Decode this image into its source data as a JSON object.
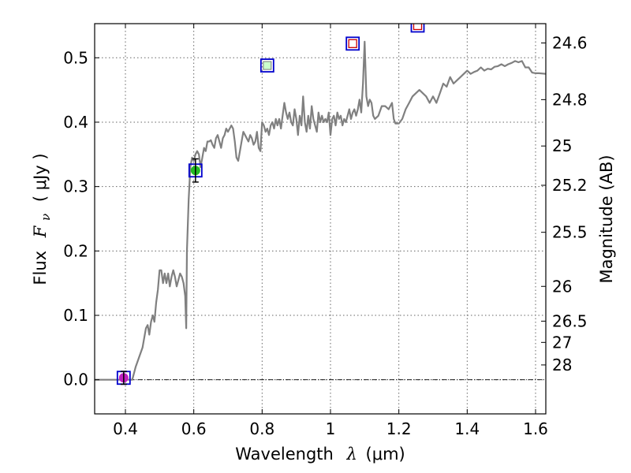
{
  "chart_data": {
    "type": "line",
    "xlabel_text": "Wavelength",
    "xlabel_symbol": "λ",
    "xlabel_units": "(μm)",
    "ylabel_text": "Flux",
    "ylabel_symbol": "F",
    "ylabel_sub": "ν",
    "ylabel_units": "( μJy )",
    "y2label": "Magnitude (AB)",
    "xlim": [
      0.31,
      1.63
    ],
    "ylim": [
      -0.053,
      0.553
    ],
    "xticks": [
      0.4,
      0.6,
      0.8,
      1.0,
      1.2,
      1.4,
      1.6
    ],
    "xtick_labels": [
      "0.4",
      "0.6",
      "0.8",
      "1",
      "1.2",
      "1.4",
      "1.6"
    ],
    "yticks": [
      0.0,
      0.1,
      0.2,
      0.3,
      0.4,
      0.5
    ],
    "ytick_labels": [
      "0.0",
      "0.1",
      "0.2",
      "0.3",
      "0.4",
      "0.5"
    ],
    "mag_ticks": [
      {
        "label": "24.6",
        "flux": 0.523
      },
      {
        "label": "24.8",
        "flux": 0.435
      },
      {
        "label": "25",
        "flux": 0.363
      },
      {
        "label": "25.2",
        "flux": 0.302
      },
      {
        "label": "25.5",
        "flux": 0.229
      },
      {
        "label": "26",
        "flux": 0.145
      },
      {
        "label": "26.5",
        "flux": 0.091
      },
      {
        "label": "27",
        "flux": 0.058
      },
      {
        "label": "28",
        "flux": 0.023
      }
    ],
    "grid": true,
    "series": [
      {
        "name": "model spectrum",
        "color": "#808080",
        "points": [
          [
            0.31,
            0.0
          ],
          [
            0.4,
            0.0
          ],
          [
            0.42,
            0.0
          ],
          [
            0.43,
            0.02
          ],
          [
            0.45,
            0.05
          ],
          [
            0.46,
            0.08
          ],
          [
            0.465,
            0.085
          ],
          [
            0.47,
            0.07
          ],
          [
            0.475,
            0.09
          ],
          [
            0.48,
            0.1
          ],
          [
            0.485,
            0.09
          ],
          [
            0.49,
            0.12
          ],
          [
            0.495,
            0.14
          ],
          [
            0.5,
            0.17
          ],
          [
            0.505,
            0.17
          ],
          [
            0.51,
            0.15
          ],
          [
            0.515,
            0.165
          ],
          [
            0.52,
            0.15
          ],
          [
            0.525,
            0.165
          ],
          [
            0.53,
            0.145
          ],
          [
            0.535,
            0.16
          ],
          [
            0.54,
            0.17
          ],
          [
            0.545,
            0.16
          ],
          [
            0.55,
            0.145
          ],
          [
            0.555,
            0.155
          ],
          [
            0.56,
            0.165
          ],
          [
            0.565,
            0.16
          ],
          [
            0.57,
            0.15
          ],
          [
            0.575,
            0.13
          ],
          [
            0.578,
            0.08
          ],
          [
            0.58,
            0.2
          ],
          [
            0.585,
            0.28
          ],
          [
            0.59,
            0.33
          ],
          [
            0.595,
            0.345
          ],
          [
            0.6,
            0.34
          ],
          [
            0.605,
            0.35
          ],
          [
            0.61,
            0.355
          ],
          [
            0.615,
            0.35
          ],
          [
            0.62,
            0.33
          ],
          [
            0.625,
            0.345
          ],
          [
            0.63,
            0.36
          ],
          [
            0.635,
            0.355
          ],
          [
            0.64,
            0.37
          ],
          [
            0.645,
            0.37
          ],
          [
            0.65,
            0.372
          ],
          [
            0.655,
            0.365
          ],
          [
            0.66,
            0.36
          ],
          [
            0.665,
            0.375
          ],
          [
            0.67,
            0.38
          ],
          [
            0.675,
            0.37
          ],
          [
            0.68,
            0.36
          ],
          [
            0.685,
            0.375
          ],
          [
            0.69,
            0.38
          ],
          [
            0.695,
            0.39
          ],
          [
            0.7,
            0.385
          ],
          [
            0.705,
            0.39
          ],
          [
            0.71,
            0.395
          ],
          [
            0.715,
            0.39
          ],
          [
            0.72,
            0.37
          ],
          [
            0.725,
            0.345
          ],
          [
            0.73,
            0.34
          ],
          [
            0.735,
            0.355
          ],
          [
            0.74,
            0.37
          ],
          [
            0.745,
            0.385
          ],
          [
            0.75,
            0.38
          ],
          [
            0.755,
            0.375
          ],
          [
            0.76,
            0.37
          ],
          [
            0.765,
            0.38
          ],
          [
            0.77,
            0.375
          ],
          [
            0.775,
            0.365
          ],
          [
            0.78,
            0.37
          ],
          [
            0.785,
            0.385
          ],
          [
            0.79,
            0.36
          ],
          [
            0.795,
            0.355
          ],
          [
            0.8,
            0.4
          ],
          [
            0.805,
            0.395
          ],
          [
            0.81,
            0.385
          ],
          [
            0.815,
            0.39
          ],
          [
            0.82,
            0.38
          ],
          [
            0.825,
            0.395
          ],
          [
            0.83,
            0.4
          ],
          [
            0.835,
            0.39
          ],
          [
            0.84,
            0.405
          ],
          [
            0.845,
            0.395
          ],
          [
            0.85,
            0.405
          ],
          [
            0.855,
            0.39
          ],
          [
            0.86,
            0.41
          ],
          [
            0.865,
            0.43
          ],
          [
            0.87,
            0.415
          ],
          [
            0.875,
            0.405
          ],
          [
            0.88,
            0.415
          ],
          [
            0.885,
            0.4
          ],
          [
            0.89,
            0.395
          ],
          [
            0.895,
            0.42
          ],
          [
            0.9,
            0.405
          ],
          [
            0.905,
            0.38
          ],
          [
            0.91,
            0.41
          ],
          [
            0.915,
            0.395
          ],
          [
            0.92,
            0.44
          ],
          [
            0.925,
            0.4
          ],
          [
            0.93,
            0.385
          ],
          [
            0.935,
            0.41
          ],
          [
            0.94,
            0.39
          ],
          [
            0.945,
            0.425
          ],
          [
            0.95,
            0.405
          ],
          [
            0.955,
            0.395
          ],
          [
            0.96,
            0.385
          ],
          [
            0.965,
            0.415
          ],
          [
            0.97,
            0.4
          ],
          [
            0.975,
            0.41
          ],
          [
            0.98,
            0.4
          ],
          [
            0.985,
            0.405
          ],
          [
            0.99,
            0.4
          ],
          [
            0.995,
            0.415
          ],
          [
            1.0,
            0.38
          ],
          [
            1.005,
            0.405
          ],
          [
            1.01,
            0.41
          ],
          [
            1.015,
            0.395
          ],
          [
            1.02,
            0.415
          ],
          [
            1.025,
            0.405
          ],
          [
            1.03,
            0.41
          ],
          [
            1.035,
            0.395
          ],
          [
            1.04,
            0.405
          ],
          [
            1.045,
            0.4
          ],
          [
            1.05,
            0.41
          ],
          [
            1.055,
            0.42
          ],
          [
            1.06,
            0.405
          ],
          [
            1.065,
            0.415
          ],
          [
            1.07,
            0.42
          ],
          [
            1.075,
            0.41
          ],
          [
            1.08,
            0.42
          ],
          [
            1.085,
            0.435
          ],
          [
            1.09,
            0.415
          ],
          [
            1.095,
            0.46
          ],
          [
            1.1,
            0.525
          ],
          [
            1.105,
            0.44
          ],
          [
            1.11,
            0.425
          ],
          [
            1.115,
            0.435
          ],
          [
            1.12,
            0.43
          ],
          [
            1.125,
            0.41
          ],
          [
            1.13,
            0.405
          ],
          [
            1.14,
            0.41
          ],
          [
            1.15,
            0.425
          ],
          [
            1.16,
            0.425
          ],
          [
            1.17,
            0.42
          ],
          [
            1.18,
            0.43
          ],
          [
            1.185,
            0.405
          ],
          [
            1.19,
            0.398
          ],
          [
            1.2,
            0.398
          ],
          [
            1.21,
            0.405
          ],
          [
            1.22,
            0.42
          ],
          [
            1.23,
            0.43
          ],
          [
            1.24,
            0.44
          ],
          [
            1.25,
            0.445
          ],
          [
            1.26,
            0.45
          ],
          [
            1.27,
            0.445
          ],
          [
            1.28,
            0.44
          ],
          [
            1.29,
            0.43
          ],
          [
            1.3,
            0.44
          ],
          [
            1.305,
            0.435
          ],
          [
            1.31,
            0.43
          ],
          [
            1.32,
            0.445
          ],
          [
            1.33,
            0.46
          ],
          [
            1.34,
            0.455
          ],
          [
            1.35,
            0.47
          ],
          [
            1.36,
            0.46
          ],
          [
            1.37,
            0.465
          ],
          [
            1.38,
            0.47
          ],
          [
            1.39,
            0.475
          ],
          [
            1.4,
            0.48
          ],
          [
            1.41,
            0.475
          ],
          [
            1.42,
            0.478
          ],
          [
            1.43,
            0.48
          ],
          [
            1.44,
            0.485
          ],
          [
            1.45,
            0.48
          ],
          [
            1.46,
            0.483
          ],
          [
            1.47,
            0.482
          ],
          [
            1.48,
            0.486
          ],
          [
            1.49,
            0.487
          ],
          [
            1.5,
            0.49
          ],
          [
            1.51,
            0.487
          ],
          [
            1.52,
            0.49
          ],
          [
            1.53,
            0.492
          ],
          [
            1.54,
            0.495
          ],
          [
            1.55,
            0.493
          ],
          [
            1.56,
            0.495
          ],
          [
            1.57,
            0.485
          ],
          [
            1.58,
            0.485
          ],
          [
            1.59,
            0.477
          ],
          [
            1.6,
            0.476
          ],
          [
            1.61,
            0.476
          ],
          [
            1.63,
            0.475
          ]
        ]
      }
    ],
    "photometry": [
      {
        "name": "observed-point",
        "x": 0.395,
        "y": 0.003,
        "y_err": 0.01,
        "fill": "#c020c0",
        "box_color": "#0000cc"
      },
      {
        "name": "observed-point",
        "x": 0.605,
        "y": 0.325,
        "y_err": 0.018,
        "fill": "#22bb22",
        "box_color": "#0000cc"
      },
      {
        "name": "model-band-point",
        "x": 0.815,
        "y": 0.488,
        "fill": "#ccffcc",
        "box_color": "#0000cc"
      },
      {
        "name": "model-band-point",
        "x": 1.065,
        "y": 0.522,
        "fill": "#ffffff",
        "box_color": "#0000cc",
        "inner_color": "#cc0000"
      },
      {
        "name": "model-band-point",
        "x": 1.255,
        "y": 0.55,
        "fill": "#ffffff",
        "box_color": "#0000cc",
        "inner_color": "#cc0000"
      }
    ],
    "zero_line": 0.0
  }
}
